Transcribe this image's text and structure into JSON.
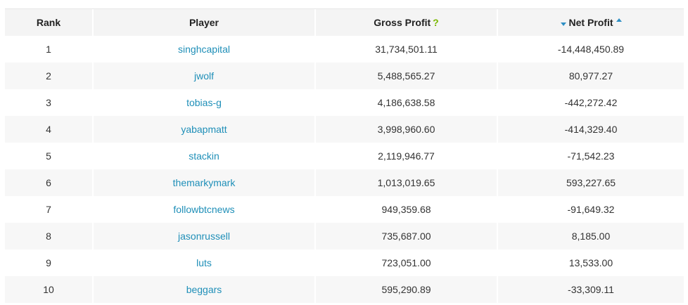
{
  "table": {
    "headers": {
      "rank": "Rank",
      "player": "Player",
      "gross": "Gross Profit",
      "gross_help": "?",
      "net": "Net Profit"
    },
    "rows": [
      {
        "rank": "1",
        "player": "singhcapital",
        "gross": "31,734,501.11",
        "net": "-14,448,450.89"
      },
      {
        "rank": "2",
        "player": "jwolf",
        "gross": "5,488,565.27",
        "net": "80,977.27"
      },
      {
        "rank": "3",
        "player": "tobias-g",
        "gross": "4,186,638.58",
        "net": "-442,272.42"
      },
      {
        "rank": "4",
        "player": "yabapmatt",
        "gross": "3,998,960.60",
        "net": "-414,329.40"
      },
      {
        "rank": "5",
        "player": "stackin",
        "gross": "2,119,946.77",
        "net": "-71,542.23"
      },
      {
        "rank": "6",
        "player": "themarkymark",
        "gross": "1,013,019.65",
        "net": "593,227.65"
      },
      {
        "rank": "7",
        "player": "followbtcnews",
        "gross": "949,359.68",
        "net": "-91,649.32"
      },
      {
        "rank": "8",
        "player": "jasonrussell",
        "gross": "735,687.00",
        "net": "8,185.00"
      },
      {
        "rank": "9",
        "player": "luts",
        "gross": "723,051.00",
        "net": "13,533.00"
      },
      {
        "rank": "10",
        "player": "beggars",
        "gross": "595,290.89",
        "net": "-33,309.11"
      }
    ]
  },
  "colors": {
    "link": "#1f8fb8",
    "help_icon": "#7ab800",
    "sort_arrow": "#2e8fc4"
  },
  "icons": {
    "help": "question-mark-icon",
    "sort_desc": "sort-down-arrow-icon",
    "sort_asc": "sort-up-arrow-icon"
  }
}
